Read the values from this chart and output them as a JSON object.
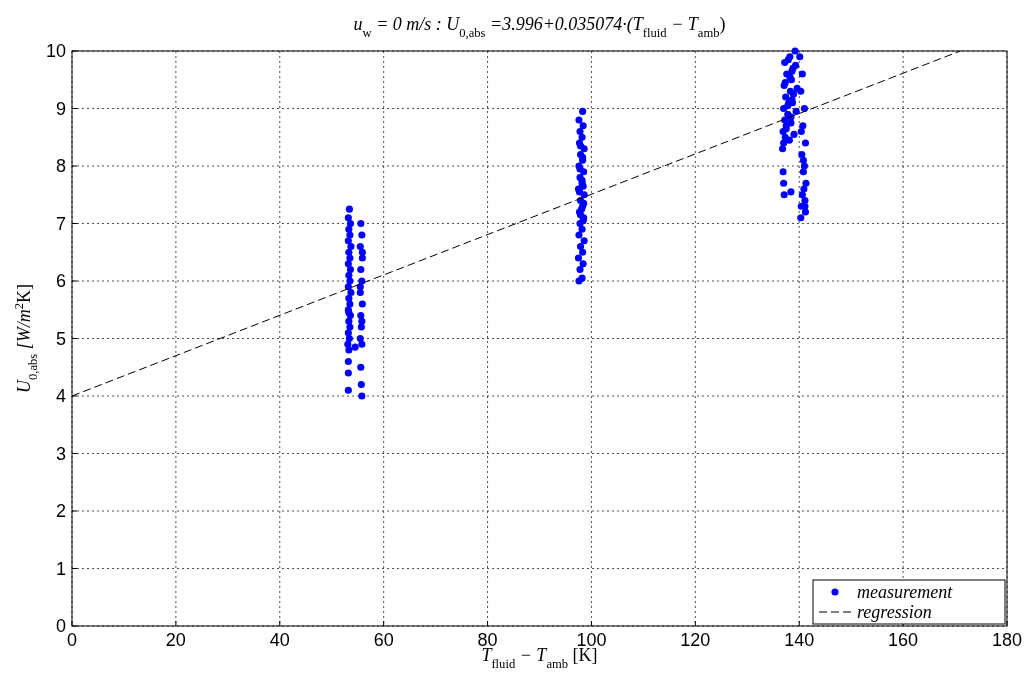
{
  "chart_data": {
    "type": "scatter",
    "title": "u$_{w}$ = 0 m/s : U$_{0,abs}$ =3.996+0.035074·(T$_{fluid}$ − T$_{amb}$)",
    "xlabel": "T$_{fluid}$ − T$_{amb}$ [K]",
    "ylabel": "U$_{0,abs}$ [W/m$^{2}$K]",
    "xlim": [
      0,
      180
    ],
    "ylim": [
      0,
      10
    ],
    "xticks": [
      0,
      20,
      40,
      60,
      80,
      100,
      120,
      140,
      160,
      180
    ],
    "yticks": [
      0,
      1,
      2,
      3,
      4,
      5,
      6,
      7,
      8,
      9,
      10
    ],
    "grid": true,
    "legend": "bottom right",
    "series": [
      {
        "name": "measurement",
        "marker": "circle",
        "color": "#0000ff",
        "x": [
          53.2,
          53.2,
          53.2,
          53.3,
          53.1,
          53.4,
          53.2,
          53.5,
          53.3,
          53.6,
          53.2,
          53.5,
          53.3,
          53.7,
          53.2,
          53.5,
          53.3,
          53.6,
          53.2,
          53.5,
          53.3,
          53.7,
          53.2,
          53.5,
          53.3,
          53.6,
          53.2,
          53.4,
          53.3,
          55.8,
          55.7,
          55.6,
          55.8,
          55.5,
          55.7,
          55.6,
          55.9,
          55.5,
          55.8,
          55.6,
          55.9,
          55.5,
          55.8,
          55.6,
          55.9,
          55.5,
          55.8,
          54.5,
          97.6,
          98.2,
          97.8,
          98.4,
          97.5,
          98.3,
          97.9,
          98.6,
          97.6,
          98.2,
          97.8,
          98.5,
          97.7,
          98.3,
          97.9,
          98.6,
          97.5,
          98.2,
          97.8,
          98.5,
          97.6,
          98.3,
          97.9,
          98.6,
          97.7,
          98.2,
          97.8,
          98.4,
          97.6,
          98.3,
          97.9,
          98.5,
          97.7,
          98.2,
          97.8,
          98.3,
          97.9,
          98.4,
          98.1,
          98.4,
          136.8,
          137.0,
          137.3,
          136.9,
          137.5,
          137.2,
          137.8,
          137.0,
          138.0,
          137.4,
          138.3,
          137.1,
          138.5,
          137.6,
          138.8,
          137.2,
          138.1,
          137.5,
          138.4,
          137.8,
          138.9,
          137.3,
          138.6,
          137.9,
          139.2,
          138.2,
          139.0,
          138.4,
          139.4,
          138.6,
          139.6,
          138.2,
          139.3,
          138.7,
          140.1,
          140.6,
          140.3,
          141.0,
          140.7,
          141.2,
          140.5,
          141.0,
          140.8,
          141.3,
          140.6,
          141.1,
          140.4,
          141.2,
          140.8,
          136.9,
          137.0,
          137.1,
          138.4,
          140.3,
          140.9,
          140.4,
          141.1
        ],
        "values": [
          4.1,
          4.4,
          4.6,
          4.8,
          4.9,
          5.0,
          5.1,
          5.2,
          5.3,
          5.4,
          5.5,
          5.6,
          5.7,
          5.8,
          5.9,
          6.0,
          6.1,
          6.2,
          6.3,
          6.4,
          6.5,
          6.6,
          6.7,
          6.8,
          6.9,
          7.0,
          7.1,
          7.25,
          5.45,
          4.0,
          4.2,
          4.5,
          4.9,
          5.0,
          5.2,
          5.4,
          5.6,
          5.8,
          6.0,
          6.2,
          6.4,
          6.6,
          6.8,
          7.0,
          6.5,
          5.9,
          5.3,
          4.85,
          6.0,
          6.05,
          6.2,
          6.3,
          6.4,
          6.5,
          6.6,
          6.7,
          6.8,
          6.9,
          7.0,
          7.1,
          7.2,
          7.3,
          7.4,
          7.5,
          7.6,
          7.7,
          7.8,
          7.9,
          8.0,
          8.1,
          8.2,
          8.3,
          8.4,
          8.5,
          8.6,
          8.7,
          8.8,
          8.95,
          7.15,
          7.35,
          7.55,
          7.75,
          7.95,
          8.15,
          8.35,
          7.05,
          7.25,
          7.65,
          8.3,
          8.4,
          8.5,
          8.6,
          8.7,
          8.8,
          8.9,
          9.0,
          9.1,
          9.2,
          9.3,
          9.4,
          9.5,
          9.6,
          9.7,
          9.8,
          8.45,
          8.65,
          8.85,
          9.05,
          9.25,
          9.45,
          9.65,
          9.85,
          10.0,
          9.9,
          8.55,
          8.75,
          8.95,
          9.15,
          9.35,
          9.55,
          9.75,
          9.1,
          9.9,
          9.6,
          9.3,
          9.0,
          8.7,
          8.4,
          8.2,
          8.0,
          7.9,
          7.7,
          7.5,
          7.4,
          7.3,
          7.2,
          8.1,
          7.9,
          7.7,
          7.5,
          7.55,
          7.1,
          7.6,
          8.6,
          7.3
        ]
      },
      {
        "name": "regression",
        "type": "line",
        "line_style": "dashed",
        "color": "#000000",
        "x": [
          0,
          171
        ],
        "values": [
          4.0,
          10.0
        ]
      }
    ]
  }
}
